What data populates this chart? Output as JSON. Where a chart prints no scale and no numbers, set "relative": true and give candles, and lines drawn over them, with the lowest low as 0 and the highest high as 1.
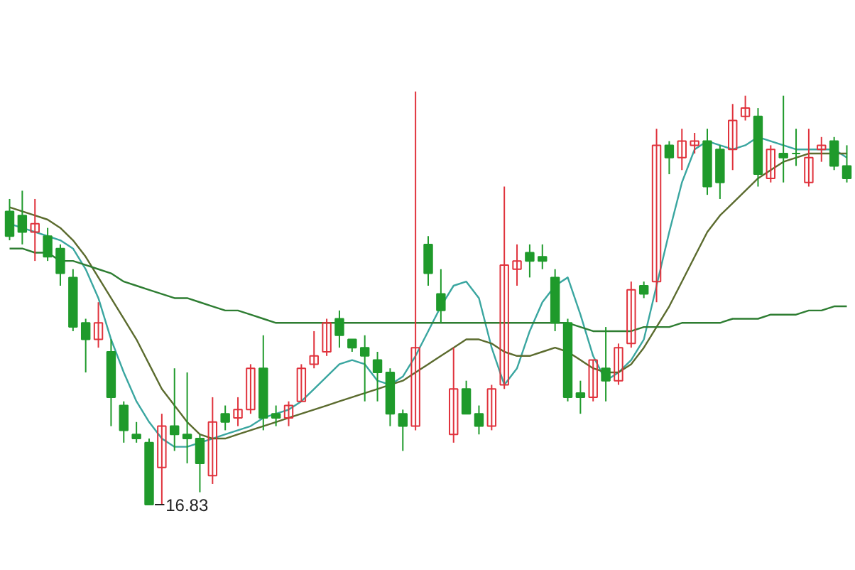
{
  "chart_data": {
    "type": "candlestick",
    "relative": true,
    "categories": [
      null,
      null,
      null,
      null,
      null,
      null,
      null,
      null,
      null,
      null,
      null,
      null,
      null,
      null,
      null,
      null,
      null,
      null,
      null,
      null,
      null,
      null,
      null,
      null,
      null,
      null,
      null,
      null,
      null,
      null,
      null,
      null,
      null,
      null,
      null,
      null,
      null,
      null,
      null,
      null,
      null,
      null,
      null,
      null,
      null,
      null,
      null,
      null,
      null,
      null,
      null,
      null,
      null,
      null,
      null,
      null,
      null,
      null,
      null,
      null,
      null,
      null,
      null,
      null,
      null,
      null,
      null
    ],
    "ohlc": [
      [
        0.71,
        0.74,
        0.64,
        0.65
      ],
      [
        0.7,
        0.76,
        0.63,
        0.66
      ],
      [
        0.66,
        0.74,
        0.59,
        0.68
      ],
      [
        0.65,
        0.67,
        0.59,
        0.6
      ],
      [
        0.62,
        0.63,
        0.53,
        0.56
      ],
      [
        0.55,
        0.57,
        0.42,
        0.43
      ],
      [
        0.44,
        0.45,
        0.32,
        0.4
      ],
      [
        0.4,
        0.49,
        0.38,
        0.44
      ],
      [
        0.37,
        0.4,
        0.19,
        0.26
      ],
      [
        0.24,
        0.25,
        0.15,
        0.18
      ],
      [
        0.17,
        0.2,
        0.15,
        0.16
      ],
      [
        0.15,
        0.16,
        0.0,
        0.0
      ],
      [
        0.09,
        0.22,
        0.0,
        0.19
      ],
      [
        0.19,
        0.33,
        0.13,
        0.17
      ],
      [
        0.17,
        0.32,
        0.1,
        0.16
      ],
      [
        0.16,
        0.17,
        0.03,
        0.1
      ],
      [
        0.07,
        0.26,
        0.05,
        0.2
      ],
      [
        0.22,
        0.24,
        0.18,
        0.2
      ],
      [
        0.21,
        0.26,
        0.19,
        0.23
      ],
      [
        0.23,
        0.34,
        0.22,
        0.33
      ],
      [
        0.33,
        0.41,
        0.18,
        0.21
      ],
      [
        0.22,
        0.24,
        0.19,
        0.21
      ],
      [
        0.21,
        0.25,
        0.19,
        0.24
      ],
      [
        0.25,
        0.34,
        0.25,
        0.33
      ],
      [
        0.34,
        0.42,
        0.33,
        0.36
      ],
      [
        0.37,
        0.45,
        0.36,
        0.44
      ],
      [
        0.45,
        0.47,
        0.38,
        0.41
      ],
      [
        0.4,
        0.4,
        0.37,
        0.38
      ],
      [
        0.38,
        0.41,
        0.25,
        0.36
      ],
      [
        0.35,
        0.37,
        0.25,
        0.32
      ],
      [
        0.32,
        0.33,
        0.19,
        0.22
      ],
      [
        0.22,
        0.23,
        0.13,
        0.19
      ],
      [
        0.19,
        1.0,
        0.18,
        0.38
      ],
      [
        0.63,
        0.65,
        0.53,
        0.56
      ],
      [
        0.51,
        0.57,
        0.44,
        0.47
      ],
      [
        0.17,
        0.38,
        0.15,
        0.28
      ],
      [
        0.28,
        0.3,
        0.22,
        0.22
      ],
      [
        0.22,
        0.24,
        0.17,
        0.19
      ],
      [
        0.19,
        0.29,
        0.18,
        0.28
      ],
      [
        0.29,
        0.77,
        0.28,
        0.58
      ],
      [
        0.57,
        0.63,
        0.53,
        0.59
      ],
      [
        0.61,
        0.63,
        0.55,
        0.59
      ],
      [
        0.6,
        0.63,
        0.57,
        0.59
      ],
      [
        0.55,
        0.57,
        0.42,
        0.44
      ],
      [
        0.44,
        0.45,
        0.25,
        0.26
      ],
      [
        0.27,
        0.3,
        0.22,
        0.26
      ],
      [
        0.26,
        0.35,
        0.25,
        0.35
      ],
      [
        0.33,
        0.43,
        0.25,
        0.3
      ],
      [
        0.3,
        0.39,
        0.29,
        0.38
      ],
      [
        0.39,
        0.54,
        0.38,
        0.52
      ],
      [
        0.53,
        0.54,
        0.5,
        0.51
      ],
      [
        0.54,
        0.91,
        0.49,
        0.87
      ],
      [
        0.87,
        0.88,
        0.8,
        0.84
      ],
      [
        0.84,
        0.91,
        0.81,
        0.88
      ],
      [
        0.87,
        0.9,
        0.85,
        0.88
      ],
      [
        0.88,
        0.91,
        0.75,
        0.77
      ],
      [
        0.86,
        0.87,
        0.74,
        0.78
      ],
      [
        0.86,
        0.97,
        0.81,
        0.93
      ],
      [
        0.94,
        0.99,
        0.93,
        0.96
      ],
      [
        0.94,
        0.96,
        0.77,
        0.8
      ],
      [
        0.79,
        0.87,
        0.78,
        0.86
      ],
      [
        0.85,
        0.99,
        0.78,
        0.84
      ],
      [
        0.85,
        0.91,
        0.82,
        0.85
      ],
      [
        0.78,
        0.91,
        0.77,
        0.84
      ],
      [
        0.86,
        0.89,
        0.83,
        0.87
      ],
      [
        0.88,
        0.89,
        0.81,
        0.82
      ],
      [
        0.82,
        0.87,
        0.78,
        0.79
      ]
    ],
    "colors": [
      "#1f9a2b",
      "#1f9a2b",
      "#e0323c",
      "#1f9a2b",
      "#1f9a2b",
      "#1f9a2b",
      "#1f9a2b",
      "#e0323c",
      "#1f9a2b",
      "#1f9a2b",
      "#1f9a2b",
      "#1f9a2b",
      "#e0323c",
      "#1f9a2b",
      "#1f9a2b",
      "#1f9a2b",
      "#e0323c",
      "#1f9a2b",
      "#e0323c",
      "#e0323c",
      "#1f9a2b",
      "#1f9a2b",
      "#e0323c",
      "#e0323c",
      "#e0323c",
      "#e0323c",
      "#1f9a2b",
      "#1f9a2b",
      "#1f9a2b",
      "#1f9a2b",
      "#1f9a2b",
      "#1f9a2b",
      "#e0323c",
      "#1f9a2b",
      "#1f9a2b",
      "#e0323c",
      "#1f9a2b",
      "#1f9a2b",
      "#e0323c",
      "#e0323c",
      "#e0323c",
      "#1f9a2b",
      "#1f9a2b",
      "#1f9a2b",
      "#1f9a2b",
      "#1f9a2b",
      "#e0323c",
      "#1f9a2b",
      "#e0323c",
      "#e0323c",
      "#1f9a2b",
      "#e0323c",
      "#1f9a2b",
      "#e0323c",
      "#e0323c",
      "#1f9a2b",
      "#1f9a2b",
      "#e0323c",
      "#e0323c",
      "#1f9a2b",
      "#e0323c",
      "#1f9a2b",
      "#1f9a2b",
      "#e0323c",
      "#e0323c",
      "#1f9a2b",
      "#1f9a2b"
    ],
    "series": [
      {
        "type": "line",
        "color": "#3aa6a0",
        "values": [
          0.68,
          0.67,
          0.66,
          0.65,
          0.64,
          0.62,
          0.57,
          0.5,
          0.4,
          0.32,
          0.25,
          0.2,
          0.16,
          0.14,
          0.14,
          0.15,
          0.16,
          0.17,
          0.18,
          0.19,
          0.21,
          0.22,
          0.23,
          0.25,
          0.28,
          0.31,
          0.34,
          0.35,
          0.34,
          0.3,
          0.29,
          0.31,
          0.36,
          0.42,
          0.48,
          0.53,
          0.54,
          0.5,
          0.38,
          0.29,
          0.33,
          0.42,
          0.49,
          0.53,
          0.55,
          0.46,
          0.36,
          0.3,
          0.32,
          0.35,
          0.4,
          0.53,
          0.66,
          0.78,
          0.86,
          0.88,
          0.87,
          0.86,
          0.87,
          0.89,
          0.88,
          0.87,
          0.86,
          0.86,
          0.86,
          0.86,
          0.84
        ]
      },
      {
        "type": "line",
        "color": "#5b6b2e",
        "values": [
          0.72,
          0.71,
          0.7,
          0.69,
          0.67,
          0.64,
          0.6,
          0.55,
          0.5,
          0.45,
          0.4,
          0.34,
          0.28,
          0.24,
          0.2,
          0.17,
          0.16,
          0.16,
          0.17,
          0.18,
          0.19,
          0.2,
          0.21,
          0.22,
          0.23,
          0.24,
          0.25,
          0.26,
          0.27,
          0.28,
          0.29,
          0.3,
          0.32,
          0.34,
          0.36,
          0.38,
          0.4,
          0.4,
          0.39,
          0.37,
          0.36,
          0.36,
          0.37,
          0.38,
          0.37,
          0.35,
          0.33,
          0.32,
          0.32,
          0.34,
          0.38,
          0.43,
          0.48,
          0.54,
          0.6,
          0.66,
          0.7,
          0.73,
          0.76,
          0.79,
          0.81,
          0.83,
          0.84,
          0.85,
          0.85,
          0.85,
          0.85
        ]
      },
      {
        "type": "line",
        "color": "#2e7d32",
        "values": [
          0.62,
          0.62,
          0.61,
          0.61,
          0.59,
          0.59,
          0.58,
          0.57,
          0.56,
          0.54,
          0.53,
          0.52,
          0.51,
          0.5,
          0.5,
          0.49,
          0.48,
          0.47,
          0.47,
          0.46,
          0.45,
          0.44,
          0.44,
          0.44,
          0.44,
          0.44,
          0.44,
          0.44,
          0.44,
          0.44,
          0.44,
          0.44,
          0.44,
          0.44,
          0.44,
          0.44,
          0.44,
          0.44,
          0.44,
          0.44,
          0.44,
          0.44,
          0.44,
          0.44,
          0.44,
          0.43,
          0.42,
          0.42,
          0.42,
          0.42,
          0.43,
          0.43,
          0.43,
          0.44,
          0.44,
          0.44,
          0.44,
          0.45,
          0.45,
          0.45,
          0.46,
          0.46,
          0.46,
          0.47,
          0.47,
          0.48,
          0.48
        ]
      }
    ],
    "annotations": [
      "16.83"
    ]
  }
}
